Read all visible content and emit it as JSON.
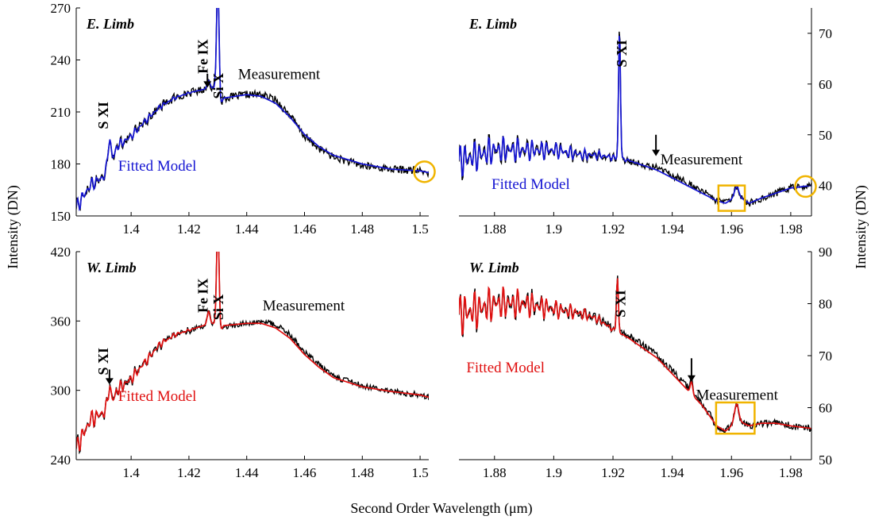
{
  "figure": {
    "xlabel": "Second Order Wavelength (μm)",
    "ylabel_left": "Intensity (DN)",
    "ylabel_right": "Intensity (DN)"
  },
  "colors": {
    "measurement": "#000000",
    "model_east": "#1414d2",
    "model_west": "#e01010",
    "highlight": "#f0b400"
  },
  "chart_data": [
    {
      "type": "line",
      "panel": "top-left",
      "title": "E. Limb",
      "xlim": [
        1.381,
        1.503
      ],
      "ylim": [
        150,
        270
      ],
      "xticks": [
        1.4,
        1.42,
        1.44,
        1.46,
        1.48,
        1.5
      ],
      "yticks": [
        150,
        180,
        210,
        240,
        270
      ],
      "yaxis_side": "left",
      "grid": false,
      "model_color": "#1414d2",
      "series": [
        {
          "name": "Measurement",
          "x": [
            1.381,
            1.386,
            1.39,
            1.393,
            1.395,
            1.4,
            1.405,
            1.41,
            1.415,
            1.42,
            1.425,
            1.429,
            1.431,
            1.432,
            1.44,
            1.445,
            1.45,
            1.455,
            1.46,
            1.465,
            1.47,
            1.48,
            1.49,
            1.5,
            1.503
          ],
          "y": [
            155,
            168,
            172,
            178,
            190,
            196,
            205,
            213,
            218,
            221,
            223,
            224,
            213,
            218,
            220,
            220,
            217,
            208,
            196,
            189,
            184,
            179,
            177,
            176,
            175
          ]
        },
        {
          "name": "Fitted Model",
          "x": [
            1.381,
            1.386,
            1.39,
            1.393,
            1.395,
            1.4,
            1.405,
            1.41,
            1.415,
            1.42,
            1.425,
            1.429,
            1.431,
            1.432,
            1.44,
            1.445,
            1.45,
            1.455,
            1.46,
            1.465,
            1.47,
            1.48,
            1.49,
            1.5,
            1.503
          ],
          "y": [
            155,
            168,
            172,
            178,
            190,
            196,
            205,
            213,
            218,
            221,
            223,
            224,
            214,
            218,
            220,
            219,
            215,
            207,
            197,
            190,
            185,
            180,
            177,
            176,
            175
          ]
        }
      ],
      "peaks": [
        {
          "x": 1.3925,
          "height": 18,
          "width": 0.0008
        },
        {
          "x": 1.4268,
          "height": 5,
          "width": 0.0007
        },
        {
          "x": 1.43,
          "height": 70,
          "width": 0.0006
        }
      ],
      "noise_amp": 2.2,
      "osc_amp": 5,
      "osc_end": 1.425,
      "annotations": [
        {
          "text": "S XI",
          "x": 1.392,
          "y": 208,
          "rotate": true
        },
        {
          "text": "Fe IX",
          "x": 1.4265,
          "y": 242,
          "rotate": true
        },
        {
          "text": "Si X",
          "x": 1.4318,
          "y": 225,
          "rotate": true
        },
        {
          "text": "Measurement",
          "x": 1.437,
          "y": 229,
          "rotate": false,
          "color": "#000000"
        },
        {
          "text": "Fitted Model",
          "x": 1.3955,
          "y": 176,
          "rotate": false,
          "color": "#1414d2"
        }
      ],
      "arrows": [
        {
          "x": 1.4264,
          "y_from": 232,
          "y_to": 224
        }
      ],
      "highlight_circle": {
        "x": 1.5015,
        "y": 175.5
      },
      "highlight_box": null
    },
    {
      "type": "line",
      "panel": "top-right",
      "title": "E. Limb",
      "xlim": [
        1.868,
        1.987
      ],
      "ylim": [
        34,
        75
      ],
      "xticks": [
        1.88,
        1.9,
        1.92,
        1.94,
        1.96,
        1.98
      ],
      "yticks": [
        40,
        50,
        60,
        70
      ],
      "yaxis_side": "right",
      "grid": false,
      "model_color": "#1414d2",
      "series": [
        {
          "name": "Measurement",
          "x": [
            1.868,
            1.875,
            1.88,
            1.89,
            1.9,
            1.91,
            1.915,
            1.92,
            1.925,
            1.93,
            1.935,
            1.94,
            1.945,
            1.95,
            1.955,
            1.958,
            1.962,
            1.966,
            1.97,
            1.975,
            1.98,
            1.987
          ],
          "y": [
            45,
            46,
            47,
            47,
            47,
            46,
            46,
            45.5,
            45,
            44,
            43.5,
            42,
            40.5,
            39,
            37,
            36.5,
            38,
            36.5,
            37.5,
            38.5,
            39.5,
            40
          ]
        },
        {
          "name": "Fitted Model",
          "x": [
            1.868,
            1.875,
            1.88,
            1.89,
            1.9,
            1.91,
            1.915,
            1.92,
            1.925,
            1.93,
            1.935,
            1.94,
            1.945,
            1.95,
            1.955,
            1.958,
            1.962,
            1.966,
            1.97,
            1.975,
            1.98,
            1.987
          ],
          "y": [
            45,
            46,
            47,
            47,
            47,
            46,
            46,
            45.5,
            45,
            44,
            43,
            41.5,
            40,
            38.5,
            37,
            36.5,
            38,
            36.5,
            37.5,
            38.5,
            39.5,
            40
          ]
        }
      ],
      "peaks": [
        {
          "x": 1.9222,
          "height": 27,
          "width": 0.00045
        },
        {
          "x": 1.9617,
          "height": 2,
          "width": 0.001
        }
      ],
      "noise_amp": 0.7,
      "osc_amp": 4,
      "osc_end": 1.93,
      "annotations": [
        {
          "text": "S XI",
          "x": 1.9245,
          "y": 66,
          "rotate": true
        },
        {
          "text": "Measurement",
          "x": 1.936,
          "y": 44.2,
          "rotate": false,
          "color": "#000000"
        },
        {
          "text": "Fitted Model",
          "x": 1.879,
          "y": 39.3,
          "rotate": false,
          "color": "#1414d2"
        }
      ],
      "arrows": [
        {
          "x": 1.9345,
          "y_from": 50,
          "y_to": 45.8
        }
      ],
      "highlight_circle": {
        "x": 1.985,
        "y": 39.8
      },
      "highlight_box": {
        "x0": 1.9556,
        "x1": 1.9645,
        "y0": 35,
        "y1": 40
      }
    },
    {
      "type": "line",
      "panel": "bottom-left",
      "title": "W. Limb",
      "xlim": [
        1.381,
        1.503
      ],
      "ylim": [
        240,
        420
      ],
      "xticks": [
        1.4,
        1.42,
        1.44,
        1.46,
        1.48,
        1.5
      ],
      "yticks": [
        240,
        300,
        360,
        420
      ],
      "yaxis_side": "left",
      "grid": false,
      "model_color": "#e01010",
      "series": [
        {
          "name": "Measurement",
          "x": [
            1.381,
            1.386,
            1.39,
            1.393,
            1.395,
            1.4,
            1.405,
            1.41,
            1.415,
            1.42,
            1.425,
            1.429,
            1.431,
            1.432,
            1.44,
            1.445,
            1.45,
            1.455,
            1.46,
            1.465,
            1.47,
            1.48,
            1.49,
            1.5,
            1.503
          ],
          "y": [
            250,
            275,
            280,
            285,
            300,
            310,
            325,
            340,
            348,
            352,
            356,
            358,
            350,
            355,
            358,
            359,
            357,
            348,
            333,
            322,
            312,
            304,
            299,
            296,
            294
          ]
        },
        {
          "name": "Fitted Model",
          "x": [
            1.381,
            1.386,
            1.39,
            1.393,
            1.395,
            1.4,
            1.405,
            1.41,
            1.415,
            1.42,
            1.425,
            1.429,
            1.431,
            1.432,
            1.44,
            1.445,
            1.45,
            1.455,
            1.46,
            1.465,
            1.47,
            1.48,
            1.49,
            1.5,
            1.503
          ],
          "y": [
            250,
            275,
            280,
            285,
            300,
            310,
            325,
            340,
            348,
            352,
            356,
            358,
            351,
            356,
            358,
            358,
            354,
            345,
            331,
            320,
            311,
            303,
            299,
            296,
            294
          ]
        }
      ],
      "peaks": [
        {
          "x": 1.3925,
          "height": 20,
          "width": 0.0008
        },
        {
          "x": 1.4268,
          "height": 12,
          "width": 0.0007
        },
        {
          "x": 1.43,
          "height": 95,
          "width": 0.0006
        }
      ],
      "noise_amp": 2.5,
      "osc_amp": 10,
      "osc_end": 1.425,
      "annotations": [
        {
          "text": "S XI",
          "x": 1.392,
          "y": 325,
          "rotate": true
        },
        {
          "text": "Fe IX",
          "x": 1.4265,
          "y": 382,
          "rotate": true
        },
        {
          "text": "Si X",
          "x": 1.4318,
          "y": 372,
          "rotate": true
        },
        {
          "text": "Measurement",
          "x": 1.4455,
          "y": 369,
          "rotate": false,
          "color": "#000000"
        },
        {
          "text": "Fitted Model",
          "x": 1.3955,
          "y": 291,
          "rotate": false,
          "color": "#e01010"
        }
      ],
      "arrows": [
        {
          "x": 1.3925,
          "y_from": 318,
          "y_to": 305
        }
      ],
      "highlight_circle": null,
      "highlight_box": null
    },
    {
      "type": "line",
      "panel": "bottom-right",
      "title": "W. Limb",
      "xlim": [
        1.868,
        1.987
      ],
      "ylim": [
        50,
        90
      ],
      "xticks": [
        1.88,
        1.9,
        1.92,
        1.94,
        1.96,
        1.98
      ],
      "yticks": [
        50,
        60,
        70,
        80,
        90
      ],
      "yaxis_side": "right",
      "grid": false,
      "model_color": "#e01010",
      "series": [
        {
          "name": "Measurement",
          "x": [
            1.868,
            1.875,
            1.88,
            1.89,
            1.9,
            1.91,
            1.915,
            1.92,
            1.925,
            1.93,
            1.935,
            1.94,
            1.945,
            1.95,
            1.955,
            1.958,
            1.962,
            1.966,
            1.97,
            1.975,
            1.98,
            1.987
          ],
          "y": [
            78,
            79,
            80,
            80,
            79,
            78,
            77,
            75.5,
            74,
            72,
            70,
            67,
            64,
            61,
            56.5,
            55.5,
            57.5,
            56.5,
            57,
            57,
            56.5,
            56
          ]
        },
        {
          "name": "Fitted Model",
          "x": [
            1.868,
            1.875,
            1.88,
            1.89,
            1.9,
            1.91,
            1.915,
            1.92,
            1.925,
            1.93,
            1.935,
            1.94,
            1.945,
            1.95,
            1.955,
            1.958,
            1.962,
            1.966,
            1.97,
            1.975,
            1.98,
            1.987
          ],
          "y": [
            78,
            79,
            80,
            80,
            79,
            78,
            77,
            75,
            73.5,
            71.5,
            69.5,
            66.5,
            63.5,
            60.5,
            56.5,
            55.5,
            57.5,
            56.5,
            57,
            57,
            56.5,
            56
          ]
        }
      ],
      "peaks": [
        {
          "x": 1.9215,
          "height": 11,
          "width": 0.00045
        },
        {
          "x": 1.9465,
          "height": 2.5,
          "width": 0.0006
        },
        {
          "x": 1.9617,
          "height": 3.5,
          "width": 0.001
        }
      ],
      "noise_amp": 0.7,
      "osc_amp": 5,
      "osc_end": 1.925,
      "annotations": [
        {
          "text": "S XI",
          "x": 1.9242,
          "y": 80,
          "rotate": true
        },
        {
          "text": "Measurement",
          "x": 1.948,
          "y": 61.5,
          "rotate": false,
          "color": "#000000"
        },
        {
          "text": "Fitted Model",
          "x": 1.8705,
          "y": 66.8,
          "rotate": false,
          "color": "#e01010"
        }
      ],
      "arrows": [
        {
          "x": 1.9465,
          "y_from": 69.5,
          "y_to": 65
        }
      ],
      "highlight_circle": null,
      "highlight_box": {
        "x0": 1.9548,
        "x1": 1.9678,
        "y0": 55,
        "y1": 61
      }
    }
  ]
}
